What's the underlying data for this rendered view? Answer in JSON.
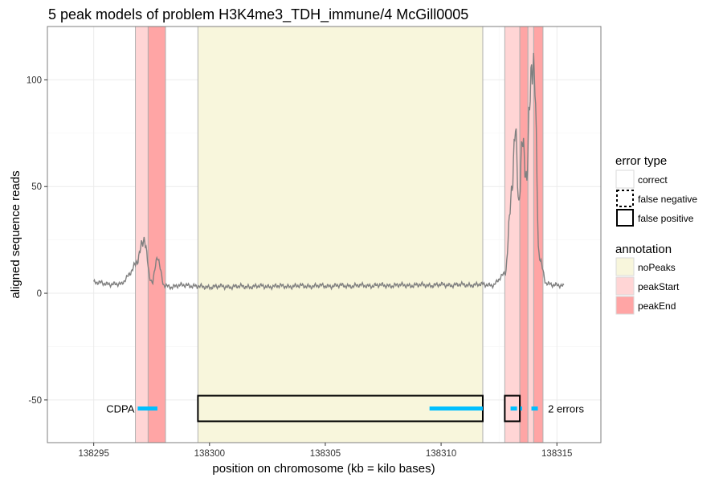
{
  "chart_data": {
    "type": "line",
    "title": "5 peak models of problem H3K4me3_TDH_immune/4 McGill0005",
    "xlabel": "position on chromosome (kb = kilo bases)",
    "ylabel": "aligned sequence reads",
    "xlim": [
      138293.0,
      138316.9
    ],
    "ylim": [
      -70,
      125
    ],
    "x_ticks": [
      138295,
      138300,
      138305,
      138310,
      138315
    ],
    "x_tick_labels": [
      "138295",
      "138300",
      "138305",
      "138310",
      "138315"
    ],
    "y_ticks": [
      -50,
      0,
      50,
      100
    ],
    "y_tick_labels": [
      "-50",
      "0",
      "50",
      "100"
    ],
    "grid": true,
    "annotation_regions": [
      {
        "start": 138296.8,
        "end": 138297.35,
        "annotation": "peakStart"
      },
      {
        "start": 138297.35,
        "end": 138298.1,
        "annotation": "peakEnd"
      },
      {
        "start": 138299.5,
        "end": 138311.8,
        "annotation": "noPeaks"
      },
      {
        "start": 138312.75,
        "end": 138313.4,
        "annotation": "peakStart"
      },
      {
        "start": 138313.4,
        "end": 138313.75,
        "annotation": "peakEnd"
      },
      {
        "start": 138313.75,
        "end": 138314.0,
        "annotation": "peakStart"
      },
      {
        "start": 138314.0,
        "end": 138314.4,
        "annotation": "peakEnd"
      }
    ],
    "error_boxes": [
      {
        "start": 138299.5,
        "end": 138311.8,
        "y_range": [
          -60,
          -48
        ],
        "error_type": "false positive"
      },
      {
        "start": 138312.75,
        "end": 138313.4,
        "y_range": [
          -60,
          -48
        ],
        "error_type": "false positive"
      }
    ],
    "peak_segments": [
      {
        "start": 138296.9,
        "end": 138297.75,
        "style": "solid"
      },
      {
        "start": 138309.5,
        "end": 138311.8,
        "style": "solid"
      },
      {
        "start": 138313.0,
        "end": 138313.5,
        "style": "dashed"
      },
      {
        "start": 138313.9,
        "end": 138314.2,
        "style": "dashed"
      }
    ],
    "text_annotations": [
      "CDPA",
      "2 errors"
    ],
    "coverage_keypoints": {
      "x": [
        138295.0,
        138296.2,
        138296.9,
        138297.2,
        138297.4,
        138297.55,
        138297.75,
        138298.0,
        138298.4,
        138299.0,
        138299.5,
        138311.8,
        138312.3,
        138312.8,
        138313.1,
        138313.2,
        138313.35,
        138313.5,
        138313.7,
        138313.85,
        138313.95,
        138314.05,
        138314.2,
        138314.5,
        138315.3
      ],
      "y": [
        5,
        4,
        15,
        27,
        8,
        5,
        18,
        4,
        3,
        4,
        3,
        4,
        4,
        10,
        60,
        78,
        40,
        68,
        55,
        95,
        120,
        100,
        20,
        5,
        3
      ]
    },
    "colors": {
      "coverage": "#808080",
      "noPeaks": "#f8f6dc",
      "peakStart": "#ffd5d5",
      "peakEnd": "#ffa5a5",
      "peak_segment": "#00bfff",
      "error_box": "#000000"
    }
  },
  "legend": {
    "error_type_title": "error type",
    "error_type_items": [
      "correct",
      "false negative",
      "false positive"
    ],
    "annotation_title": "annotation",
    "annotation_items": [
      "noPeaks",
      "peakStart",
      "peakEnd"
    ]
  }
}
